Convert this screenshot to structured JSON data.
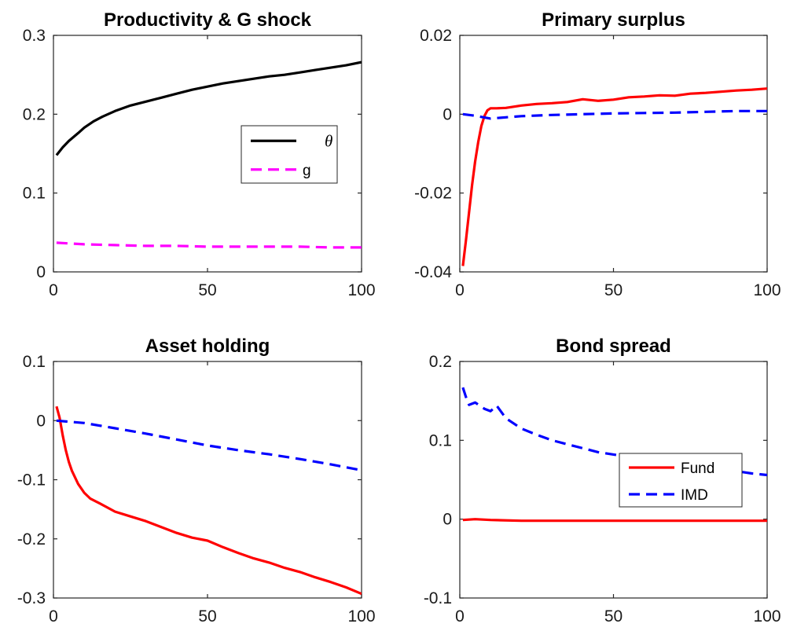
{
  "chart_data": [
    {
      "type": "line",
      "title": "Productivity & G shock",
      "xlabel": "",
      "ylabel": "",
      "xlim": [
        0,
        100
      ],
      "ylim": [
        0,
        0.3
      ],
      "xticks": [
        "0",
        "50",
        "100"
      ],
      "yticks": [
        "0",
        "0.1",
        "0.2",
        "0.3"
      ],
      "legend_position": "right-middle",
      "series": [
        {
          "name": "θ",
          "color": "#000000",
          "style": "solid",
          "x": [
            1,
            3,
            5,
            8,
            10,
            13,
            16,
            20,
            25,
            30,
            35,
            40,
            45,
            50,
            55,
            60,
            65,
            70,
            75,
            80,
            85,
            90,
            95,
            100
          ],
          "y": [
            0.148,
            0.158,
            0.166,
            0.176,
            0.183,
            0.191,
            0.197,
            0.204,
            0.211,
            0.216,
            0.221,
            0.226,
            0.231,
            0.235,
            0.239,
            0.242,
            0.245,
            0.248,
            0.25,
            0.253,
            0.256,
            0.259,
            0.262,
            0.266
          ]
        },
        {
          "name": "g",
          "color": "#ff00ff",
          "style": "dashed",
          "x": [
            1,
            10,
            20,
            30,
            40,
            50,
            60,
            70,
            80,
            90,
            100
          ],
          "y": [
            0.037,
            0.035,
            0.034,
            0.033,
            0.033,
            0.032,
            0.032,
            0.032,
            0.032,
            0.031,
            0.031
          ]
        }
      ]
    },
    {
      "type": "line",
      "title": "Primary surplus",
      "xlabel": "",
      "ylabel": "",
      "xlim": [
        0,
        100
      ],
      "ylim": [
        -0.04,
        0.02
      ],
      "xticks": [
        "0",
        "50",
        "100"
      ],
      "yticks": [
        "-0.04",
        "-0.02",
        "0",
        "0.02"
      ],
      "series": [
        {
          "name": "Fund",
          "color": "#ff0000",
          "style": "solid",
          "x": [
            1,
            2,
            3,
            4,
            5,
            6,
            7,
            8,
            9,
            10,
            12,
            15,
            20,
            25,
            30,
            35,
            40,
            45,
            50,
            55,
            60,
            65,
            70,
            75,
            80,
            85,
            90,
            95,
            100
          ],
          "y": [
            -0.0385,
            -0.032,
            -0.025,
            -0.018,
            -0.012,
            -0.007,
            -0.003,
            -0.0005,
            0.001,
            0.0015,
            0.0015,
            0.0016,
            0.0022,
            0.0026,
            0.0028,
            0.0031,
            0.0038,
            0.0034,
            0.0037,
            0.0043,
            0.0045,
            0.0048,
            0.0047,
            0.0052,
            0.0054,
            0.0057,
            0.006,
            0.0062,
            0.0065
          ]
        },
        {
          "name": "IMD",
          "color": "#0000ff",
          "style": "dashed",
          "x": [
            1,
            5,
            10,
            15,
            20,
            30,
            40,
            50,
            60,
            70,
            80,
            90,
            100
          ],
          "y": [
            0.0,
            -0.0004,
            -0.0011,
            -0.0008,
            -0.0005,
            -0.0002,
            0.0,
            0.0002,
            0.0003,
            0.0004,
            0.0006,
            0.0008,
            0.0008
          ]
        }
      ]
    },
    {
      "type": "line",
      "title": "Asset holding",
      "xlabel": "",
      "ylabel": "",
      "xlim": [
        0,
        100
      ],
      "ylim": [
        -0.3,
        0.1
      ],
      "xticks": [
        "0",
        "50",
        "100"
      ],
      "yticks": [
        "-0.3",
        "-0.2",
        "-0.1",
        "0",
        "0.1"
      ],
      "series": [
        {
          "name": "Fund",
          "color": "#ff0000",
          "style": "solid",
          "x": [
            1,
            2,
            3,
            4,
            5,
            6,
            8,
            10,
            12,
            15,
            20,
            25,
            30,
            35,
            40,
            45,
            50,
            55,
            60,
            65,
            70,
            75,
            80,
            85,
            90,
            95,
            100
          ],
          "y": [
            0.024,
            0.005,
            -0.025,
            -0.05,
            -0.07,
            -0.085,
            -0.107,
            -0.122,
            -0.132,
            -0.14,
            -0.154,
            -0.162,
            -0.17,
            -0.18,
            -0.19,
            -0.198,
            -0.203,
            -0.214,
            -0.224,
            -0.233,
            -0.24,
            -0.249,
            -0.256,
            -0.265,
            -0.273,
            -0.282,
            -0.293
          ]
        },
        {
          "name": "IMD",
          "color": "#0000ff",
          "style": "dashed",
          "x": [
            1,
            10,
            20,
            30,
            40,
            50,
            60,
            70,
            80,
            90,
            100
          ],
          "y": [
            0.0,
            -0.004,
            -0.013,
            -0.022,
            -0.032,
            -0.042,
            -0.05,
            -0.057,
            -0.065,
            -0.074,
            -0.084
          ]
        }
      ]
    },
    {
      "type": "line",
      "title": "Bond spread",
      "xlabel": "",
      "ylabel": "",
      "xlim": [
        0,
        100
      ],
      "ylim": [
        -0.1,
        0.2
      ],
      "xticks": [
        "0",
        "50",
        "100"
      ],
      "yticks": [
        "-0.1",
        "0",
        "0.1",
        "0.2"
      ],
      "legend_position": "right-middle",
      "series": [
        {
          "name": "Fund",
          "color": "#ff0000",
          "style": "solid",
          "x": [
            1,
            5,
            10,
            20,
            30,
            40,
            50,
            60,
            70,
            80,
            90,
            100
          ],
          "y": [
            -0.001,
            0.0,
            -0.001,
            -0.002,
            -0.002,
            -0.002,
            -0.002,
            -0.002,
            -0.002,
            -0.002,
            -0.002,
            -0.002
          ]
        },
        {
          "name": "IMD",
          "color": "#0000ff",
          "style": "dashed",
          "x": [
            1,
            2,
            3,
            5,
            8,
            10,
            12,
            15,
            20,
            25,
            30,
            35,
            40,
            45,
            50,
            55,
            60,
            65,
            70,
            75,
            80,
            85,
            90,
            95,
            100
          ],
          "y": [
            0.167,
            0.155,
            0.145,
            0.148,
            0.14,
            0.137,
            0.144,
            0.128,
            0.115,
            0.107,
            0.1,
            0.095,
            0.09,
            0.085,
            0.082,
            0.079,
            0.076,
            0.073,
            0.07,
            0.068,
            0.066,
            0.063,
            0.061,
            0.058,
            0.056
          ]
        }
      ]
    }
  ]
}
